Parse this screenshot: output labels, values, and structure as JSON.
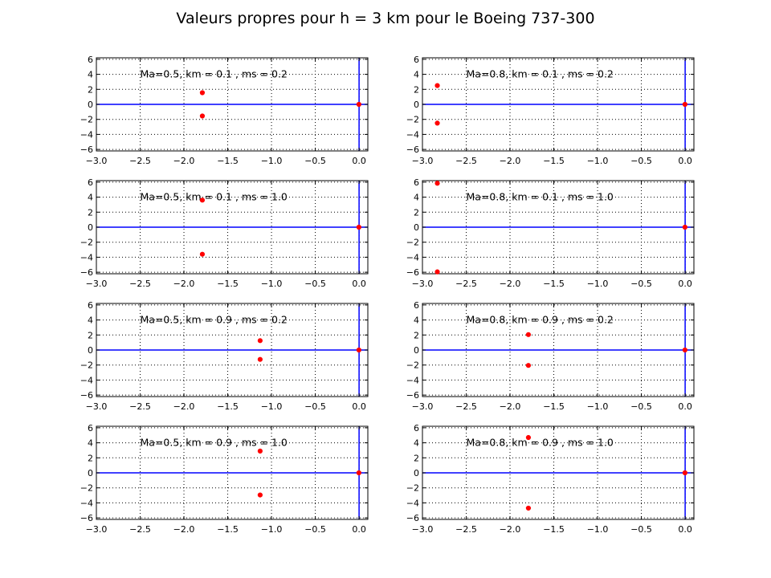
{
  "figure_title": "Valeurs propres pour h = 3 km pour le Boeing 737-300",
  "colors": {
    "points": "#ff0000",
    "axis_lines": "#0000ff",
    "grid": "#000000",
    "frame": "#000000"
  },
  "chart_data": [
    {
      "type": "scatter",
      "annotation": "Ma=0.5, km = 0.1 , ms = 0.2",
      "points": [
        [
          -1.79,
          1.55
        ],
        [
          -1.79,
          -1.55
        ],
        [
          -0.002,
          0.0
        ]
      ],
      "xlim": [
        -3.0,
        0.1
      ],
      "ylim": [
        -6.2,
        6.2
      ],
      "xticks": [
        "−3.0",
        "−2.5",
        "−2.0",
        "−1.5",
        "−1.0",
        "−0.5",
        "0.0"
      ],
      "yticks": [
        "6",
        "4",
        "2",
        "0",
        "−2",
        "−4",
        "−6"
      ],
      "grid": true
    },
    {
      "type": "scatter",
      "annotation": "Ma=0.8, km = 0.1 , ms = 0.2",
      "points": [
        [
          -2.83,
          2.5
        ],
        [
          -2.83,
          -2.5
        ],
        [
          -0.002,
          0.0
        ]
      ],
      "xlim": [
        -3.0,
        0.1
      ],
      "ylim": [
        -6.2,
        6.2
      ],
      "xticks": [
        "−3.0",
        "−2.5",
        "−2.0",
        "−1.5",
        "−1.0",
        "−0.5",
        "0.0"
      ],
      "yticks": [
        "6",
        "4",
        "2",
        "0",
        "−2",
        "−4",
        "−6"
      ],
      "grid": true
    },
    {
      "type": "scatter",
      "annotation": "Ma=0.5, km = 0.1 , ms = 1.0",
      "points": [
        [
          -1.79,
          3.6
        ],
        [
          -1.79,
          -3.6
        ],
        [
          -0.002,
          0.0
        ]
      ],
      "xlim": [
        -3.0,
        0.1
      ],
      "ylim": [
        -6.2,
        6.2
      ],
      "xticks": [
        "−3.0",
        "−2.5",
        "−2.0",
        "−1.5",
        "−1.0",
        "−0.5",
        "0.0"
      ],
      "yticks": [
        "6",
        "4",
        "2",
        "0",
        "−2",
        "−4",
        "−6"
      ],
      "grid": true
    },
    {
      "type": "scatter",
      "annotation": "Ma=0.8, km = 0.1 , ms = 1.0",
      "points": [
        [
          -2.83,
          5.85
        ],
        [
          -2.83,
          -5.95
        ],
        [
          -0.002,
          0.0
        ]
      ],
      "xlim": [
        -3.0,
        0.1
      ],
      "ylim": [
        -6.2,
        6.2
      ],
      "xticks": [
        "−3.0",
        "−2.5",
        "−2.0",
        "−1.5",
        "−1.0",
        "−0.5",
        "0.0"
      ],
      "yticks": [
        "6",
        "4",
        "2",
        "0",
        "−2",
        "−4",
        "−6"
      ],
      "grid": true
    },
    {
      "type": "scatter",
      "annotation": "Ma=0.5, km = 0.9 , ms = 0.2",
      "points": [
        [
          -1.13,
          1.25
        ],
        [
          -1.13,
          -1.25
        ],
        [
          -0.002,
          0.0
        ]
      ],
      "xlim": [
        -3.0,
        0.1
      ],
      "ylim": [
        -6.2,
        6.2
      ],
      "xticks": [
        "−3.0",
        "−2.5",
        "−2.0",
        "−1.5",
        "−1.0",
        "−0.5",
        "0.0"
      ],
      "yticks": [
        "6",
        "4",
        "2",
        "0",
        "−2",
        "−4",
        "−6"
      ],
      "grid": true
    },
    {
      "type": "scatter",
      "annotation": "Ma=0.8, km = 0.9 , ms = 0.2",
      "points": [
        [
          -1.79,
          2.05
        ],
        [
          -1.79,
          -2.05
        ],
        [
          -0.002,
          0.0
        ]
      ],
      "xlim": [
        -3.0,
        0.1
      ],
      "ylim": [
        -6.2,
        6.2
      ],
      "xticks": [
        "−3.0",
        "−2.5",
        "−2.0",
        "−1.5",
        "−1.0",
        "−0.5",
        "0.0"
      ],
      "yticks": [
        "6",
        "4",
        "2",
        "0",
        "−2",
        "−4",
        "−6"
      ],
      "grid": true
    },
    {
      "type": "scatter",
      "annotation": "Ma=0.5, km = 0.9 , ms = 1.0",
      "points": [
        [
          -1.13,
          2.9
        ],
        [
          -1.13,
          -2.95
        ],
        [
          -0.002,
          0.0
        ]
      ],
      "xlim": [
        -3.0,
        0.1
      ],
      "ylim": [
        -6.2,
        6.2
      ],
      "xticks": [
        "−3.0",
        "−2.5",
        "−2.0",
        "−1.5",
        "−1.0",
        "−0.5",
        "0.0"
      ],
      "yticks": [
        "6",
        "4",
        "2",
        "0",
        "−2",
        "−4",
        "−6"
      ],
      "grid": true
    },
    {
      "type": "scatter",
      "annotation": "Ma=0.8, km = 0.9 , ms = 1.0",
      "points": [
        [
          -1.79,
          4.7
        ],
        [
          -1.79,
          -4.7
        ],
        [
          -0.002,
          0.0
        ]
      ],
      "xlim": [
        -3.0,
        0.1
      ],
      "ylim": [
        -6.2,
        6.2
      ],
      "xticks": [
        "−3.0",
        "−2.5",
        "−2.0",
        "−1.5",
        "−1.0",
        "−0.5",
        "0.0"
      ],
      "yticks": [
        "6",
        "4",
        "2",
        "0",
        "−2",
        "−4",
        "−6"
      ],
      "grid": true
    }
  ]
}
